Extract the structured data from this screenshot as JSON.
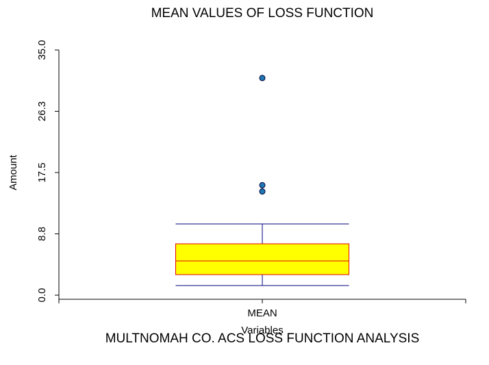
{
  "chart_data": {
    "type": "box",
    "title": "MEAN VALUES OF LOSS FUNCTION",
    "subtitle": "MULTNOMAH CO. ACS LOSS FUNCTION ANALYSIS",
    "xlabel": "Variables",
    "ylabel": "Amount",
    "categories": [
      "MEAN"
    ],
    "boxes": [
      {
        "whisker_low": 1.37,
        "q1": 2.93,
        "median": 4.89,
        "q3": 7.33,
        "whisker_high": 10.17,
        "outliers": [
          31.0,
          15.7,
          14.8
        ]
      }
    ],
    "ylim": [
      0,
      35
    ],
    "yticks": [
      {
        "value": 0,
        "label": "0.0"
      },
      {
        "value": 8.75,
        "label": "8.8"
      },
      17.5,
      {
        "value": 26.25,
        "label": "26.3"
      },
      {
        "value": 35,
        "label": "35.0"
      }
    ],
    "box_color": "#ffff00",
    "box_edge_color": "#e00000",
    "whisker_color": "#000080",
    "outlier_color": "#1f77b4"
  }
}
